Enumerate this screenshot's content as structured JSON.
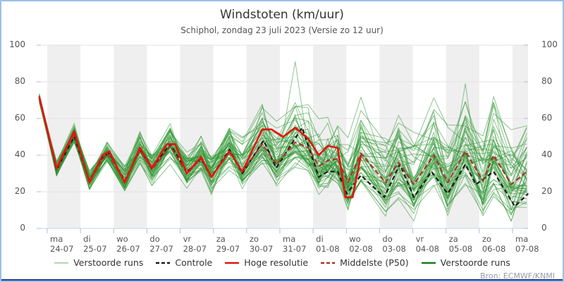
{
  "header": {
    "title": "Windstoten (km/uur)",
    "subtitle": "Schiphol, zondag 23 juli 2023 (Versie zo 12 uur)"
  },
  "source": "Bron: ECMWF/KNMI",
  "colors": {
    "frame": "#9cc0e8",
    "bottom_bar": "#1f3d8c",
    "day_band": "#efefef",
    "gridline": "#e3e3e3",
    "axis_line": "#c9d6ea",
    "tick": "#a9bedb",
    "ensemble_green": "#2f9632",
    "dark_green": "#177d17",
    "pale_green": "#b6d6b0",
    "hres_red": "#e3140e",
    "p50_dark_red": "#aa332e",
    "control_black": "#1a1a1a"
  },
  "chart_data": {
    "type": "line",
    "title": "Windstoten (km/uur)",
    "subtitle": "Schiphol, zondag 23 juli 2023 (Versie zo 12 uur)",
    "ylabel": "",
    "xlabel": "",
    "ylim": [
      0,
      100
    ],
    "yticks": [
      0,
      20,
      40,
      60,
      80,
      100
    ],
    "grid": "horizontal",
    "legend_position": "bottom",
    "x_axis_days": [
      {
        "weekday": "ma",
        "date": "24-07"
      },
      {
        "weekday": "di",
        "date": "25-07"
      },
      {
        "weekday": "wo",
        "date": "26-07"
      },
      {
        "weekday": "do",
        "date": "27-07"
      },
      {
        "weekday": "vr",
        "date": "28-07"
      },
      {
        "weekday": "za",
        "date": "29-07"
      },
      {
        "weekday": "zo",
        "date": "30-07"
      },
      {
        "weekday": "ma",
        "date": "31-07"
      },
      {
        "weekday": "di",
        "date": "01-08"
      },
      {
        "weekday": "wo",
        "date": "02-08"
      },
      {
        "weekday": "do",
        "date": "03-08"
      },
      {
        "weekday": "vr",
        "date": "04-08"
      },
      {
        "weekday": "za",
        "date": "05-08"
      },
      {
        "weekday": "zo",
        "date": "06-08"
      },
      {
        "weekday": "ma",
        "date": "07-08"
      }
    ],
    "shaded_band_days": [
      0,
      2,
      4,
      6,
      8,
      10,
      12,
      14
    ],
    "legend": [
      {
        "label": "Verstoorde runs",
        "color": "#b6d6b0",
        "dash": false,
        "width": 2
      },
      {
        "label": "Controle",
        "color": "#1a1a1a",
        "dash": true,
        "width": 2.5
      },
      {
        "label": "Hoge resolutie",
        "color": "#e3140e",
        "dash": false,
        "width": 2.5
      },
      {
        "label": "Middelste (P50)",
        "color": "#aa332e",
        "dash": true,
        "width": 2.5
      },
      {
        "label": "Verstoorde runs",
        "color": "#177d17",
        "dash": false,
        "width": 2.5
      }
    ],
    "series": [
      {
        "name": "Hoge resolutie",
        "style": "solid",
        "color": "#e3140e",
        "points": [
          [
            -0.24,
            72
          ],
          [
            0.28,
            33
          ],
          [
            0.81,
            53
          ],
          [
            1.27,
            25
          ],
          [
            1.66,
            40
          ],
          [
            1.87,
            42
          ],
          [
            2.33,
            25
          ],
          [
            2.79,
            44
          ],
          [
            3.15,
            33
          ],
          [
            3.6,
            46
          ],
          [
            3.85,
            46
          ],
          [
            4.2,
            30
          ],
          [
            4.63,
            39
          ],
          [
            4.94,
            28
          ],
          [
            5.48,
            42
          ],
          [
            5.87,
            31
          ],
          [
            6.47,
            54
          ],
          [
            6.75,
            54
          ],
          [
            7.1,
            50
          ],
          [
            7.46,
            55
          ],
          [
            7.85,
            49
          ],
          [
            8.17,
            40
          ],
          [
            8.44,
            45
          ],
          [
            8.74,
            44
          ],
          [
            8.97,
            17
          ],
          [
            9.19,
            17
          ],
          [
            9.44,
            40
          ]
        ]
      },
      {
        "name": "Controle",
        "style": "dashed",
        "color": "#1a1a1a",
        "points": [
          [
            -0.24,
            72
          ],
          [
            0.28,
            32
          ],
          [
            0.81,
            50
          ],
          [
            1.27,
            26
          ],
          [
            1.66,
            39
          ],
          [
            1.87,
            41
          ],
          [
            2.33,
            26
          ],
          [
            2.79,
            43
          ],
          [
            3.15,
            33
          ],
          [
            3.7,
            46
          ],
          [
            4.2,
            31
          ],
          [
            4.63,
            38
          ],
          [
            4.94,
            28
          ],
          [
            5.48,
            43
          ],
          [
            5.87,
            30
          ],
          [
            6.51,
            48
          ],
          [
            6.89,
            33
          ],
          [
            7.67,
            55
          ],
          [
            8.17,
            28
          ],
          [
            8.44,
            31
          ],
          [
            8.74,
            31
          ],
          [
            9.01,
            19
          ],
          [
            9.44,
            29
          ],
          [
            10.14,
            17
          ],
          [
            10.61,
            35
          ],
          [
            11.03,
            17
          ],
          [
            11.56,
            31
          ],
          [
            12.05,
            19
          ],
          [
            12.58,
            35
          ],
          [
            12.9,
            24
          ],
          [
            13.43,
            31
          ],
          [
            14.07,
            12
          ],
          [
            14.47,
            19
          ]
        ]
      },
      {
        "name": "Middelste (P50)",
        "style": "dashed",
        "color": "#aa332e",
        "points": [
          [
            -0.24,
            71
          ],
          [
            0.28,
            32
          ],
          [
            0.81,
            51
          ],
          [
            1.27,
            26
          ],
          [
            1.8,
            41
          ],
          [
            2.33,
            26
          ],
          [
            2.79,
            43
          ],
          [
            3.15,
            32
          ],
          [
            3.7,
            45
          ],
          [
            4.2,
            30
          ],
          [
            4.63,
            38
          ],
          [
            4.94,
            28
          ],
          [
            5.48,
            42
          ],
          [
            5.87,
            31
          ],
          [
            6.47,
            46
          ],
          [
            6.9,
            35
          ],
          [
            7.46,
            47
          ],
          [
            7.85,
            44
          ],
          [
            8.17,
            34
          ],
          [
            8.44,
            37
          ],
          [
            8.74,
            38
          ],
          [
            9.05,
            25
          ],
          [
            9.44,
            41
          ],
          [
            10.18,
            25
          ],
          [
            10.57,
            36
          ],
          [
            11.03,
            24
          ],
          [
            11.63,
            40
          ],
          [
            12.05,
            25
          ],
          [
            12.58,
            42
          ],
          [
            13.11,
            26
          ],
          [
            13.43,
            40
          ],
          [
            13.96,
            24
          ],
          [
            14.43,
            31
          ]
        ]
      }
    ],
    "ensemble": {
      "name": "Verstoorde runs",
      "color": "#2f9632",
      "opacity": 0.6,
      "count": 50,
      "seed": 11,
      "persistence": 0.55,
      "step": 0.8,
      "up_base": 3,
      "up_growth": 1.9,
      "up_cap": 26,
      "dn_base": 2.5,
      "dn_growth": 1.15,
      "dn_cap": 16,
      "start_value": 71,
      "start_jitter": 2.5,
      "min": 4,
      "max": 96,
      "spikes": [
        {
          "m": 3,
          "i": 16,
          "v": 91
        },
        {
          "m": 9,
          "i": 28,
          "v": 79
        },
        {
          "m": 21,
          "i": 14,
          "v": 67
        },
        {
          "m": 15,
          "i": 30,
          "v": 72
        }
      ]
    }
  }
}
